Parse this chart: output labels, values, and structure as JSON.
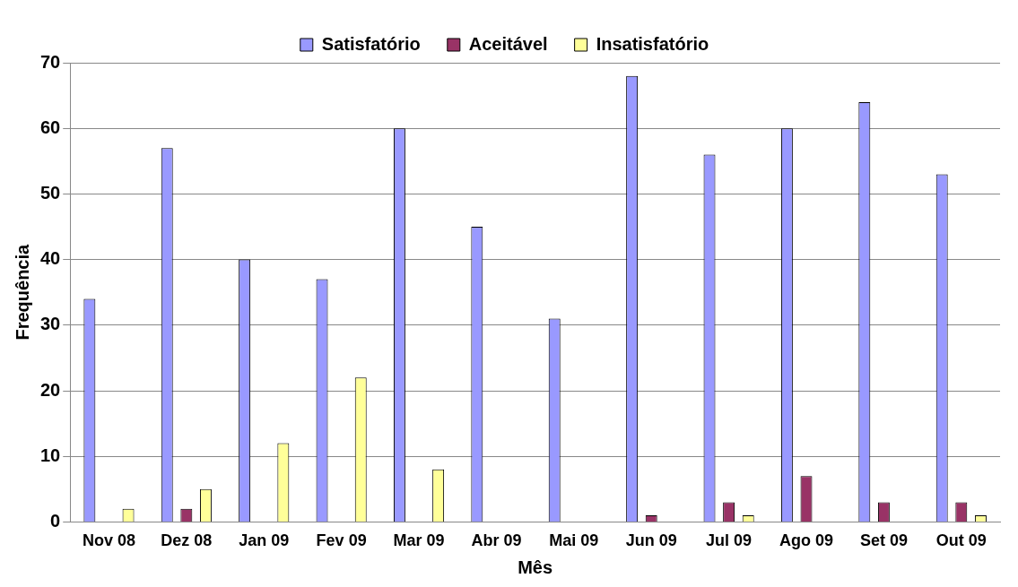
{
  "chart_data": {
    "type": "bar",
    "xlabel": "Mês",
    "ylabel": "Frequência",
    "categories": [
      "Nov 08",
      "Dez 08",
      "Jan 09",
      "Fev 09",
      "Mar 09",
      "Abr 09",
      "Mai 09",
      "Jun 09",
      "Jul 09",
      "Ago 09",
      "Set 09",
      "Out 09"
    ],
    "series": [
      {
        "name": "Satisfatório",
        "color": "#9999ff",
        "values": [
          34,
          57,
          40,
          37,
          60,
          45,
          31,
          68,
          56,
          60,
          64,
          53
        ]
      },
      {
        "name": "Aceitável",
        "color": "#993366",
        "values": [
          0,
          2,
          0,
          0,
          0,
          0,
          0,
          1,
          3,
          7,
          3,
          3
        ]
      },
      {
        "name": "Insatisfatório",
        "color": "#ffff99",
        "values": [
          2,
          5,
          12,
          22,
          8,
          0,
          0,
          0,
          1,
          0,
          0,
          1
        ]
      }
    ],
    "ylim": [
      0,
      70
    ],
    "yticks": [
      0,
      10,
      20,
      30,
      40,
      50,
      60,
      70
    ],
    "grid": "y",
    "legend": "top"
  }
}
